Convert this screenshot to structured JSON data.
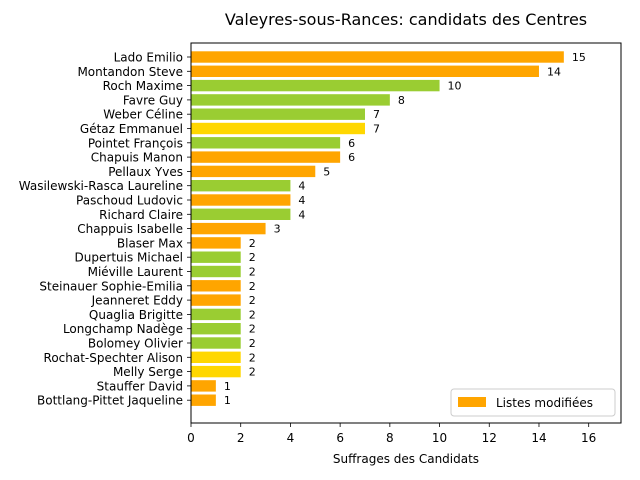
{
  "chart_data": {
    "type": "bar",
    "orientation": "horizontal",
    "title": "Valeyres-sous-Rances: candidats des Centres",
    "xlabel": "Suffrages des Candidats",
    "ylabel": "",
    "xlim": [
      0,
      17.3
    ],
    "xticks": [
      0,
      2,
      4,
      6,
      8,
      10,
      12,
      14,
      16
    ],
    "grid": false,
    "legend_placement": "lower-right",
    "legend": [
      {
        "label": "Listes modifiées",
        "color": "#ffa500"
      }
    ],
    "colors": {
      "orange": "#ffa500",
      "green": "#9acd32",
      "yellow": "#ffd700"
    },
    "categories": [
      "Lado Emilio",
      "Montandon Steve",
      "Roch Maxime",
      "Favre Guy",
      "Weber Céline",
      "Gétaz Emmanuel",
      "Pointet François",
      "Chapuis Manon",
      "Pellaux Yves",
      "Wasilewski-Rasca Laureline",
      "Paschoud Ludovic",
      "Richard Claire",
      "Chappuis Isabelle",
      "Blaser Max",
      "Dupertuis Michael",
      "Miéville Laurent",
      "Steinauer Sophie-Emilia",
      "Jeanneret Eddy",
      "Quaglia Brigitte",
      "Longchamp Nadège",
      "Bolomey Olivier",
      "Rochat-Spechter Alison",
      "Melly Serge",
      "Stauffer David",
      "Bottlang-Pittet Jaqueline"
    ],
    "values": [
      15,
      14,
      10,
      8,
      7,
      7,
      6,
      6,
      5,
      4,
      4,
      4,
      3,
      2,
      2,
      2,
      2,
      2,
      2,
      2,
      2,
      2,
      2,
      1,
      1
    ],
    "bar_colors": [
      "#ffa500",
      "#ffa500",
      "#9acd32",
      "#9acd32",
      "#9acd32",
      "#ffd700",
      "#9acd32",
      "#ffa500",
      "#ffa500",
      "#9acd32",
      "#ffa500",
      "#9acd32",
      "#ffa500",
      "#ffa500",
      "#9acd32",
      "#9acd32",
      "#ffa500",
      "#ffa500",
      "#9acd32",
      "#9acd32",
      "#9acd32",
      "#ffd700",
      "#ffd700",
      "#ffa500",
      "#ffa500"
    ]
  }
}
